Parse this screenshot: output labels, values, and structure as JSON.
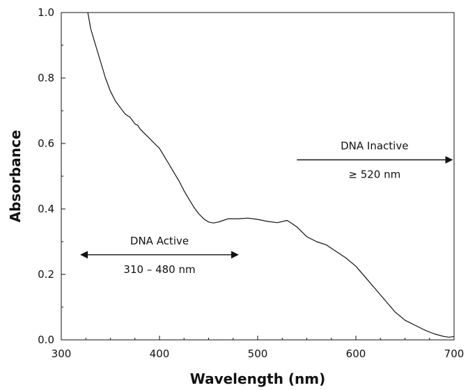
{
  "chart_data": {
    "type": "line",
    "xlabel": "Wavelength (nm)",
    "ylabel": "Absorbance",
    "xlim": [
      300,
      700
    ],
    "ylim": [
      0,
      1.0
    ],
    "x_ticks": [
      "300",
      "400",
      "500",
      "600",
      "700"
    ],
    "y_ticks": [
      "0.0",
      "0.2",
      "0.4",
      "0.6",
      "0.8",
      "1.0"
    ],
    "grid": false,
    "series": [
      {
        "x": [
          327,
          330,
          335,
          340,
          345,
          350,
          355,
          360,
          365,
          370,
          375,
          378,
          380,
          385,
          390,
          395,
          400,
          405,
          410,
          415,
          420,
          425,
          430,
          435,
          440,
          445,
          450,
          455,
          460,
          465,
          470,
          480,
          490,
          500,
          510,
          520,
          530,
          535,
          540,
          545,
          550,
          560,
          570,
          580,
          590,
          600,
          610,
          620,
          630,
          640,
          650,
          660,
          670,
          680,
          690,
          695,
          700
        ],
        "y": [
          1.0,
          0.95,
          0.9,
          0.85,
          0.8,
          0.76,
          0.73,
          0.71,
          0.69,
          0.68,
          0.66,
          0.655,
          0.645,
          0.63,
          0.615,
          0.6,
          0.585,
          0.56,
          0.535,
          0.51,
          0.485,
          0.455,
          0.43,
          0.405,
          0.385,
          0.37,
          0.36,
          0.357,
          0.36,
          0.365,
          0.37,
          0.37,
          0.372,
          0.368,
          0.362,
          0.358,
          0.365,
          0.355,
          0.345,
          0.33,
          0.315,
          0.3,
          0.29,
          0.27,
          0.25,
          0.225,
          0.19,
          0.155,
          0.12,
          0.085,
          0.06,
          0.045,
          0.03,
          0.018,
          0.01,
          0.008,
          0.01
        ]
      }
    ],
    "annotations": [
      {
        "label": "DNA Active",
        "range_text": "310 – 480 nm",
        "x_from": 320,
        "x_to": 480,
        "y": 0.26,
        "direction": "both"
      },
      {
        "label": "DNA Inactive",
        "range_text": "≥ 520 nm",
        "x_from": 540,
        "x_to": 698,
        "y": 0.55,
        "direction": "right"
      }
    ]
  }
}
